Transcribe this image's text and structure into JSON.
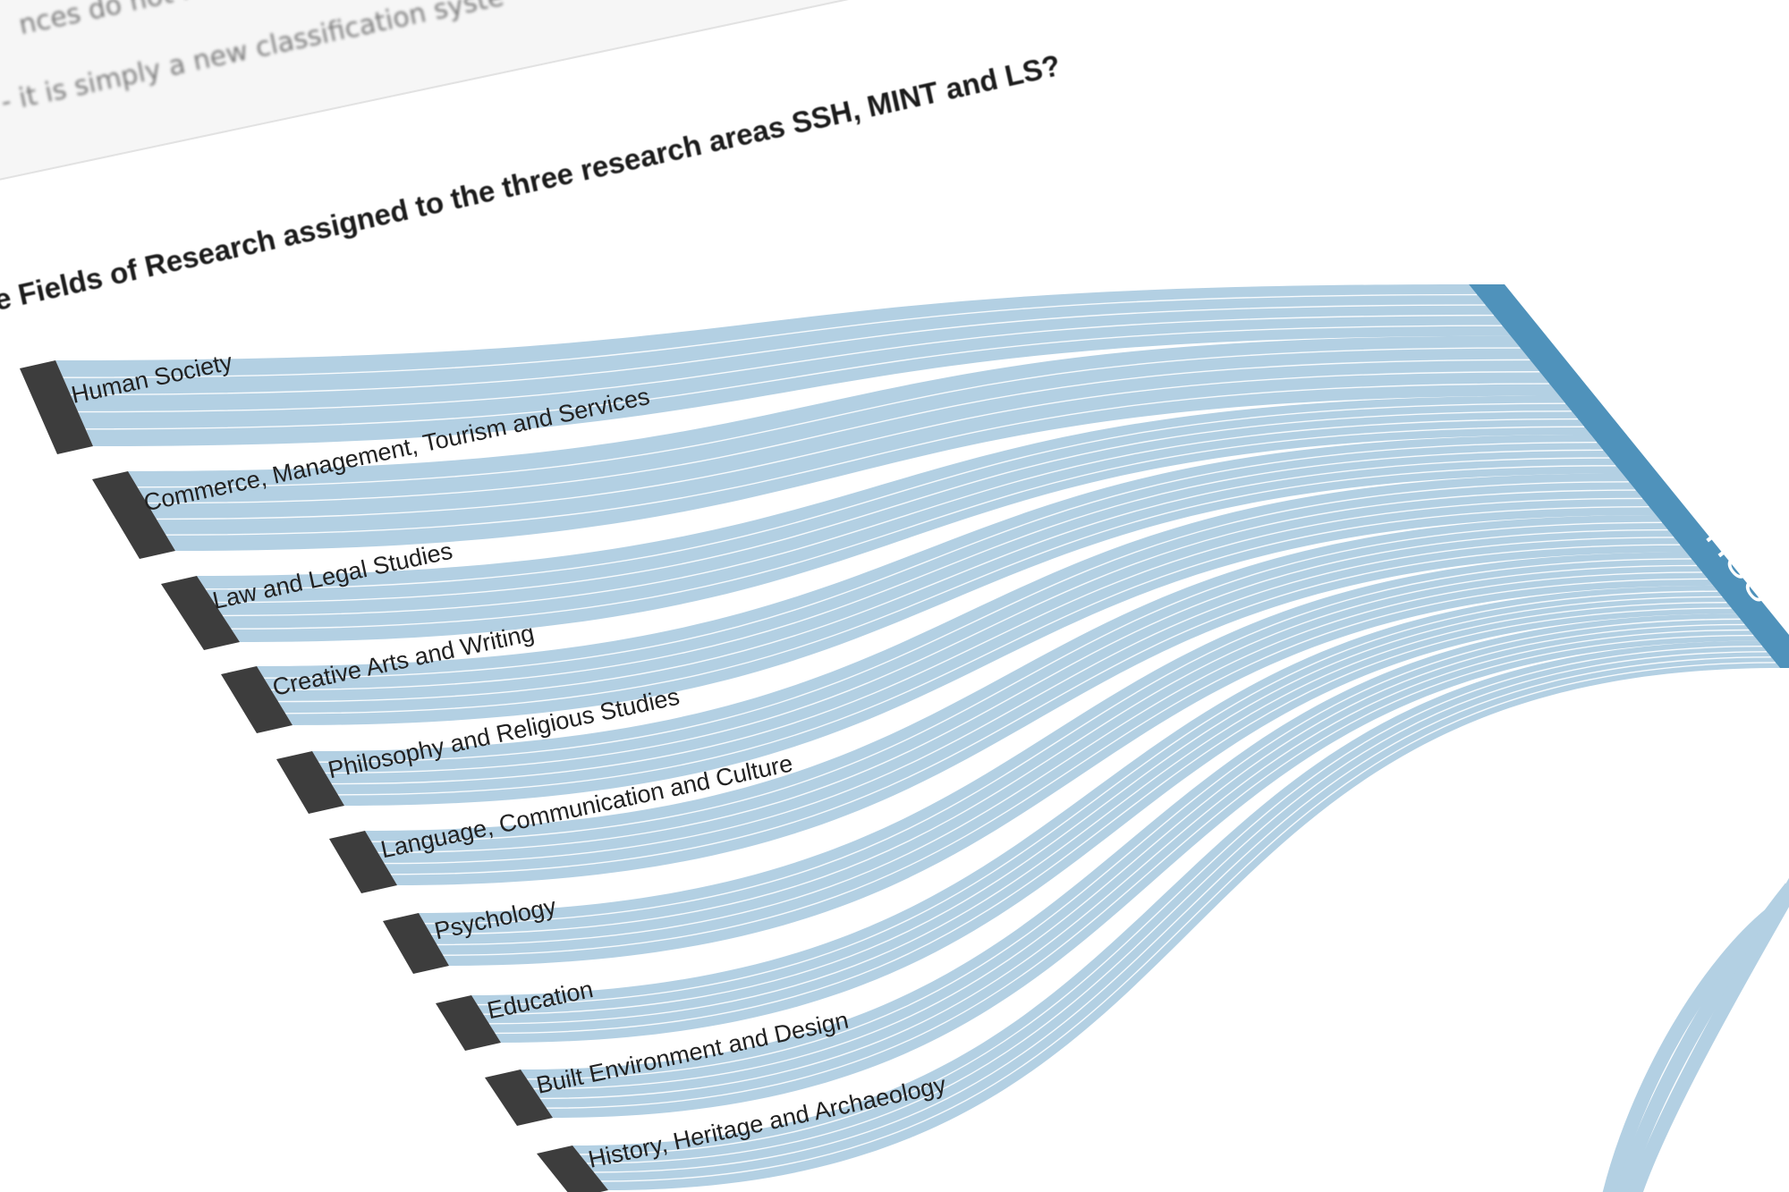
{
  "intro": {
    "line1": "nces do not ref",
    "line2": "- it is simply a new classification syste"
  },
  "chart": {
    "title": "e Fields of Research assigned to the three research areas SSH, MINT and LS?"
  },
  "chart_data": {
    "type": "sankey",
    "sources": [
      "Human Society",
      "Commerce, Management, Tourism and Services",
      "Law and Legal Studies",
      "Creative Arts and Writing",
      "Philosophy and Religious Studies",
      "Language, Communication and Culture",
      "Psychology",
      "Education",
      "Built Environment and Design",
      "History, Heritage and Archaeology"
    ],
    "targets": [
      "HSS"
    ],
    "links": [
      {
        "source": "Human Society",
        "target": "HSS"
      },
      {
        "source": "Commerce, Management, Tourism and Services",
        "target": "HSS"
      },
      {
        "source": "Law and Legal Studies",
        "target": "HSS"
      },
      {
        "source": "Creative Arts and Writing",
        "target": "HSS"
      },
      {
        "source": "Philosophy and Religious Studies",
        "target": "HSS"
      },
      {
        "source": "Language, Communication and Culture",
        "target": "HSS"
      },
      {
        "source": "Psychology",
        "target": "HSS"
      },
      {
        "source": "Education",
        "target": "HSS"
      },
      {
        "source": "Built Environment and Design",
        "target": "HSS"
      },
      {
        "source": "History, Heritage and Archaeology",
        "target": "HSS"
      }
    ]
  },
  "colors": {
    "flow": "#b3d0e3",
    "flow_line": "#ffffff",
    "source_node": "#3d3d3d",
    "target_node": "#4f92bb"
  }
}
